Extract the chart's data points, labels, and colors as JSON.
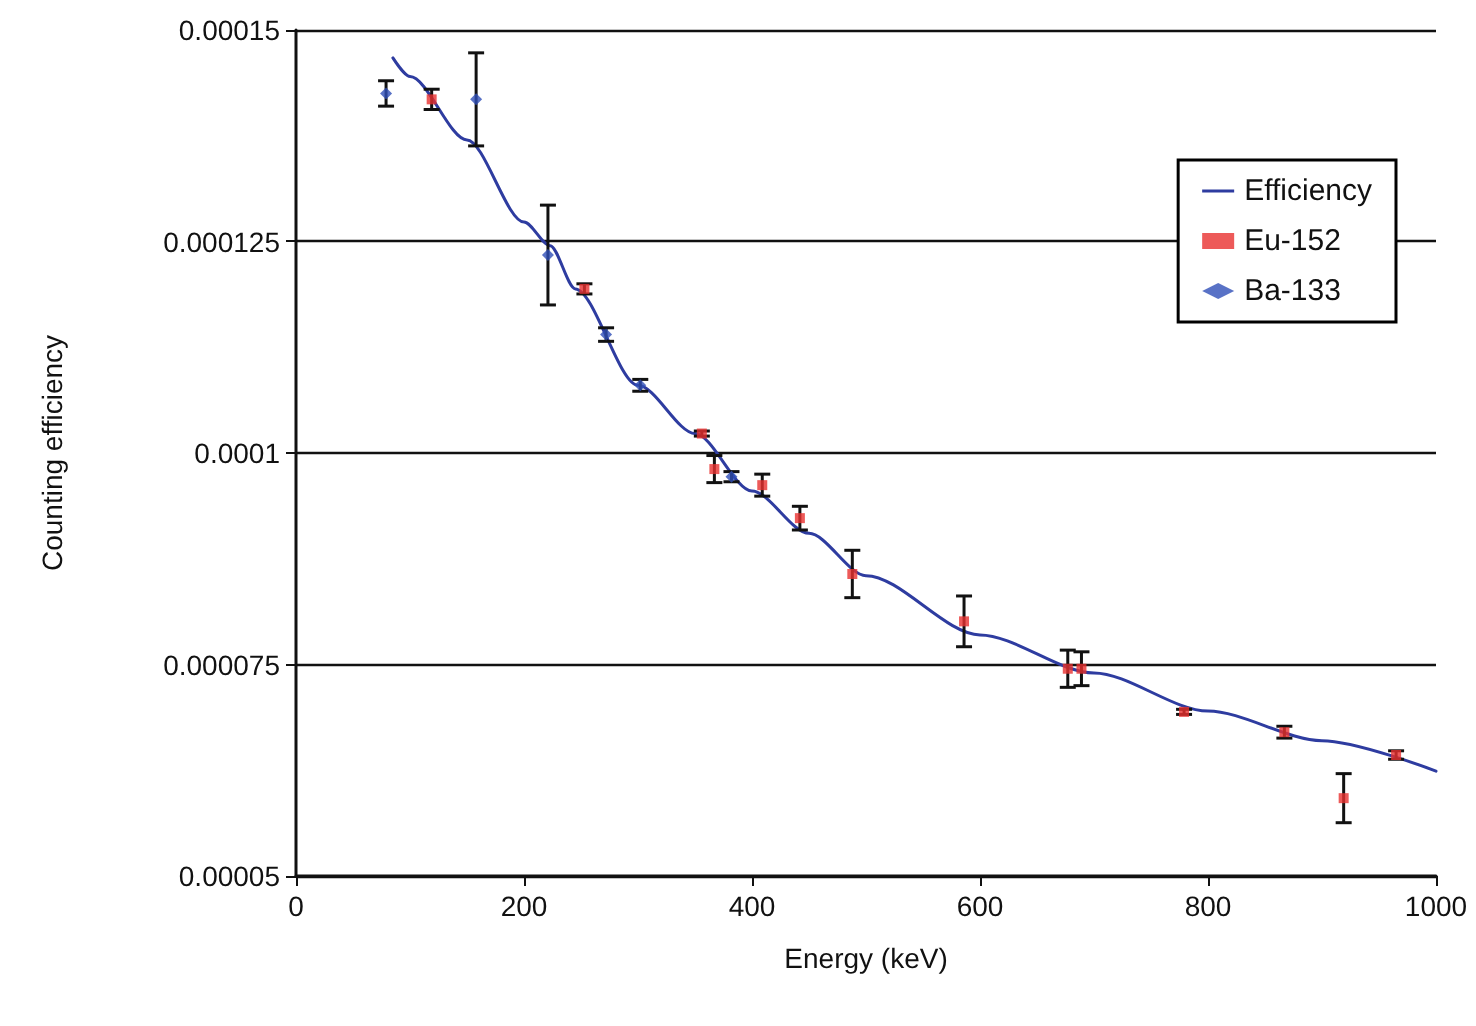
{
  "chart_data": {
    "type": "scatter",
    "xlabel": "Energy (keV)",
    "ylabel": "Counting efficiency",
    "xlim": [
      0,
      1000
    ],
    "xticks": [
      0,
      200,
      400,
      600,
      800,
      1000
    ],
    "ylim": [
      5e-05,
      0.00015
    ],
    "yticks": [
      {
        "value": 5e-05,
        "label": "0.00005"
      },
      {
        "value": 7.5e-05,
        "label": "0.000075"
      },
      0.0001,
      0.000125,
      0.00015
    ],
    "grid": "y",
    "legend": "top right",
    "series": [
      {
        "name": "Efficiency",
        "type": "line",
        "color": "#2e3ca0",
        "marker": "none",
        "line_style": "solid",
        "x": [
          85,
          100,
          150,
          200,
          223,
          245,
          300,
          350,
          400,
          450,
          500,
          600,
          700,
          800,
          900,
          1000
        ],
        "values": [
          0.0001467,
          0.0001445,
          0.000137,
          0.0001273,
          0.0001245,
          0.0001194,
          0.000108,
          0.0001023,
          9.55e-05,
          9.05e-05,
          8.55e-05,
          7.85e-05,
          7.4e-05,
          6.95e-05,
          6.6e-05,
          6.24e-05
        ]
      },
      {
        "name": "Eu-152",
        "color": "#e8312f",
        "marker": "square",
        "x": [
          119,
          253,
          356,
          367,
          409,
          442,
          488,
          586,
          677,
          689,
          779,
          867,
          919,
          965
        ],
        "values": [
          0.0001418,
          0.0001194,
          0.0001023,
          9.81e-05,
          9.62e-05,
          9.23e-05,
          8.57e-05,
          8.01e-05,
          7.45e-05,
          7.45e-05,
          6.94e-05,
          6.7e-05,
          5.92e-05,
          6.43e-05
        ],
        "errors": [
          1.2e-06,
          6e-07,
          3e-07,
          1.6e-06,
          1.3e-06,
          1.4e-06,
          2.8e-06,
          3e-06,
          2.2e-06,
          2e-06,
          3e-07,
          7e-07,
          2.9e-06,
          5e-07
        ]
      },
      {
        "name": "Ba-133",
        "color": "#2f4fb8",
        "marker": "diamond",
        "x": [
          79,
          158,
          221,
          272,
          302,
          382
        ],
        "values": [
          0.0001425,
          0.0001418,
          0.0001234,
          0.000114,
          0.000108,
          9.72e-05
        ],
        "errors": [
          1.5e-06,
          5.5e-06,
          5.9e-06,
          8e-07,
          7e-07,
          6e-07
        ]
      }
    ]
  }
}
